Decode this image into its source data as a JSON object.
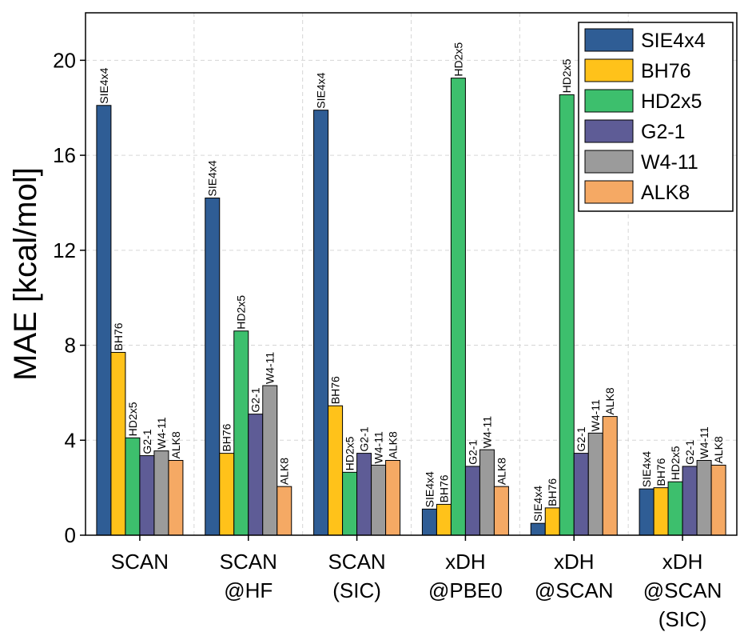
{
  "chart_data": {
    "type": "bar",
    "ylabel": "MAE [kcal/mol]",
    "xlabel": "",
    "ylim": [
      0,
      22
    ],
    "yticks": [
      0,
      4,
      8,
      12,
      16,
      20
    ],
    "grid": true,
    "legend_position": "top-right",
    "categories": [
      [
        "SCAN"
      ],
      [
        "SCAN",
        "@HF"
      ],
      [
        "SCAN",
        "(SIC)"
      ],
      [
        "xDH",
        "@PBE0"
      ],
      [
        "xDH",
        "@SCAN"
      ],
      [
        "xDH",
        "@SCAN",
        "(SIC)"
      ]
    ],
    "series": [
      {
        "name": "SIE4x4",
        "color": "#2f5d95",
        "values": [
          18.1,
          14.2,
          17.9,
          1.1,
          0.5,
          1.95
        ]
      },
      {
        "name": "BH76",
        "color": "#ffc21a",
        "values": [
          7.7,
          3.45,
          5.45,
          1.3,
          1.15,
          2.0
        ]
      },
      {
        "name": "HD2x5",
        "color": "#3dbf6d",
        "values": [
          4.1,
          8.6,
          2.65,
          19.25,
          18.55,
          2.25
        ]
      },
      {
        "name": "G2-1",
        "color": "#5e5c96",
        "values": [
          3.35,
          5.1,
          3.45,
          2.9,
          3.45,
          2.9
        ]
      },
      {
        "name": "W4-11",
        "color": "#9b9b9b",
        "values": [
          3.55,
          6.3,
          2.95,
          3.6,
          4.3,
          3.15
        ]
      },
      {
        "name": "ALK8",
        "color": "#f5a964",
        "values": [
          3.15,
          2.05,
          3.15,
          2.05,
          5.0,
          2.95
        ]
      }
    ]
  }
}
